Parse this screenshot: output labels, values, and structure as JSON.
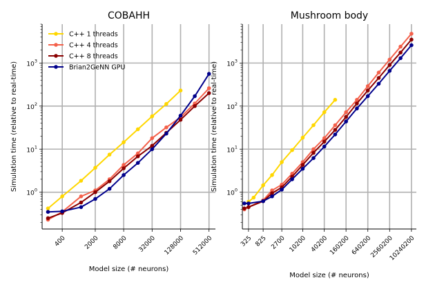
{
  "chart_data": [
    {
      "type": "line",
      "title": "COBAHH",
      "xlabel": "Model size (# neurons)",
      "ylabel": "Simulation time (relative to real-time)",
      "xscale": "log",
      "yscale": "log",
      "xlim": [
        150,
        700000
      ],
      "ylim": [
        0.14,
        8000
      ],
      "grid": true,
      "legend_position": "top-left",
      "x_tick_labels": [
        "400",
        "2000",
        "8000",
        "32000",
        "128000",
        "512000"
      ],
      "x_tick_values": [
        400,
        2000,
        8000,
        32000,
        128000,
        512000
      ],
      "y_tick_labels": [
        "10",
        "10",
        "10",
        "10"
      ],
      "y_tick_exponents": [
        "0",
        "1",
        "2",
        "3"
      ],
      "y_tick_values": [
        1,
        10,
        100,
        1000
      ],
      "series": [
        {
          "name": "C++  1 threads",
          "color": "#FFD700",
          "x": [
            200,
            400,
            1000,
            2000,
            4000,
            8000,
            16000,
            32000,
            64000,
            128000
          ],
          "y": [
            0.42,
            0.8,
            1.85,
            3.7,
            7.5,
            14.5,
            29,
            58,
            112,
            230
          ]
        },
        {
          "name": "C++  4 threads",
          "color": "#F4604A",
          "x": [
            200,
            400,
            1000,
            2000,
            4000,
            8000,
            16000,
            32000,
            64000,
            128000,
            256000,
            512000
          ],
          "y": [
            0.23,
            0.35,
            0.8,
            1.1,
            2.0,
            4.3,
            8.0,
            18,
            32,
            55,
            115,
            260
          ]
        },
        {
          "name": "C++  8 threads",
          "color": "#8B0000",
          "x": [
            200,
            400,
            1000,
            2000,
            4000,
            8000,
            16000,
            32000,
            64000,
            128000,
            256000,
            512000
          ],
          "y": [
            0.25,
            0.33,
            0.58,
            1.0,
            1.8,
            3.6,
            6.8,
            12,
            24,
            48,
            100,
            200
          ]
        },
        {
          "name": "Brian2GeNN GPU",
          "color": "#00008B",
          "x": [
            200,
            400,
            1000,
            2000,
            4000,
            8000,
            16000,
            32000,
            64000,
            128000,
            256000,
            512000
          ],
          "y": [
            0.35,
            0.36,
            0.45,
            0.7,
            1.2,
            2.5,
            4.8,
            10,
            23,
            60,
            170,
            560
          ]
        }
      ]
    },
    {
      "type": "line",
      "title": "Mushroom body",
      "xlabel": "Model size (# neurons)",
      "ylabel": "Simulation time (relative to real-time)",
      "xscale": "log",
      "yscale": "log",
      "xlim": [
        220,
        14000000
      ],
      "ylim": [
        0.14,
        8000
      ],
      "grid": true,
      "x_tick_labels": [
        "325",
        "825",
        "2700",
        "10200",
        "40200",
        "160200",
        "640200",
        "2560200",
        "10240200"
      ],
      "x_tick_values": [
        325,
        825,
        2700,
        10200,
        40200,
        160200,
        640200,
        2560200,
        10240200
      ],
      "y_tick_labels": [
        "10",
        "10",
        "10",
        "10"
      ],
      "y_tick_exponents": [
        "0",
        "1",
        "2",
        "3"
      ],
      "y_tick_values": [
        1,
        10,
        100,
        1000
      ],
      "series": [
        {
          "name": "C++  1 threads",
          "color": "#FFD700",
          "x": [
            325,
            450,
            825,
            1450,
            2700,
            5200,
            10200,
            20200,
            40200,
            80200
          ],
          "y": [
            0.6,
            0.75,
            1.45,
            2.5,
            5.0,
            9.5,
            18.5,
            36,
            72,
            140
          ]
        },
        {
          "name": "C++  4 threads",
          "color": "#F4604A",
          "x": [
            250,
            325,
            825,
            1450,
            2700,
            5200,
            10200,
            20200,
            40200,
            80200,
            160200,
            320200,
            640200,
            1280200,
            2560200,
            5120200,
            10240200
          ],
          "y": [
            0.4,
            0.45,
            0.65,
            1.1,
            1.5,
            2.7,
            5.0,
            10,
            18,
            36,
            72,
            140,
            290,
            600,
            1200,
            2400,
            4800
          ]
        },
        {
          "name": "C++  8 threads",
          "color": "#8B0000",
          "x": [
            250,
            325,
            825,
            1450,
            2700,
            5200,
            10200,
            20200,
            40200,
            80200,
            160200,
            320200,
            640200,
            1280200,
            2560200,
            5120200,
            10240200
          ],
          "y": [
            0.42,
            0.45,
            0.62,
            0.95,
            1.3,
            2.3,
            4.3,
            8.2,
            15,
            28,
            56,
            115,
            230,
            450,
            900,
            1750,
            3500
          ]
        },
        {
          "name": "Brian2GeNN GPU",
          "color": "#00008B",
          "x": [
            250,
            325,
            825,
            1450,
            2700,
            5200,
            10200,
            20200,
            40200,
            80200,
            160200,
            320200,
            640200,
            1280200,
            2560200,
            5120200,
            10240200
          ],
          "y": [
            0.55,
            0.55,
            0.62,
            0.8,
            1.15,
            2.0,
            3.5,
            6.2,
            11.5,
            22,
            44,
            88,
            170,
            330,
            660,
            1300,
            2600
          ]
        }
      ]
    }
  ]
}
